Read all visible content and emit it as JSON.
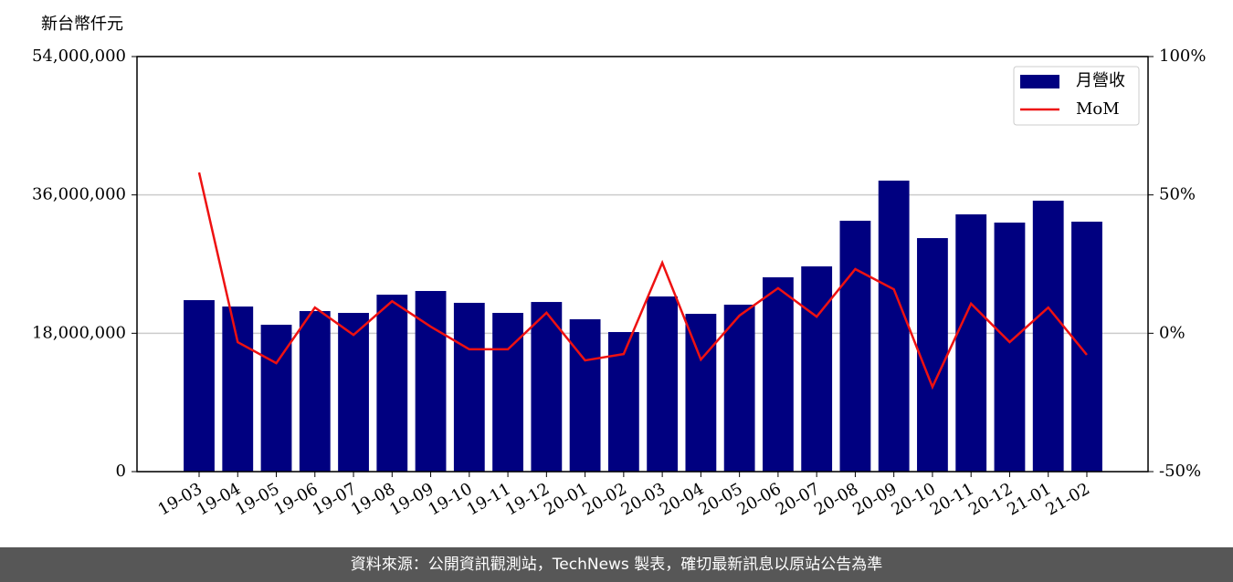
{
  "chart_data": {
    "type": "bar",
    "y_label": "新台幣仟元",
    "categories": [
      "19-03",
      "19-04",
      "19-05",
      "19-06",
      "19-07",
      "19-08",
      "19-09",
      "19-10",
      "19-11",
      "19-12",
      "20-01",
      "20-02",
      "20-03",
      "20-04",
      "20-05",
      "20-06",
      "20-07",
      "20-08",
      "20-09",
      "20-10",
      "20-11",
      "20-12",
      "21-01",
      "21-02"
    ],
    "series": [
      {
        "name": "月營收",
        "type": "bar",
        "color": "#000080",
        "values": [
          22310000,
          21480000,
          19110000,
          20890000,
          20650000,
          23020000,
          23500000,
          21960000,
          20650000,
          22070000,
          19820000,
          18160000,
          22790000,
          20530000,
          21720000,
          25280000,
          26700000,
          32640000,
          37860000,
          30380000,
          33470000,
          32400000,
          35250000,
          32520000
        ]
      },
      {
        "name": "MoM",
        "type": "line",
        "color": "#ee1111",
        "axis": "y2",
        "values": [
          58.1,
          -3.2,
          -10.8,
          9.3,
          -0.6,
          11.6,
          2.4,
          -5.8,
          -5.8,
          7.4,
          -9.8,
          -7.5,
          25.5,
          -9.5,
          6.4,
          16.3,
          6.0,
          23.2,
          15.9,
          -19.4,
          10.7,
          -3.2,
          9.3,
          -7.8
        ]
      }
    ],
    "ylim": [
      0,
      54000000
    ],
    "yticks": [
      0,
      {
        "value": 18000000,
        "label": "18,000,000"
      },
      {
        "value": 36000000,
        "label": "36,000,000"
      },
      {
        "value": 54000000,
        "label": "54,000,000"
      }
    ],
    "y2lim": [
      -50,
      100
    ],
    "y2ticks": [
      {
        "value": -50,
        "label": "-50%"
      },
      {
        "value": 0,
        "label": "0%"
      },
      {
        "value": 50,
        "label": "50%"
      },
      {
        "value": 100,
        "label": "100%"
      }
    ],
    "grid": true,
    "legend": "upper right"
  },
  "footer": {
    "source": "資料來源：公開資訊觀測站，TechNews 製表，確切最新訊息以原站公告為準"
  }
}
